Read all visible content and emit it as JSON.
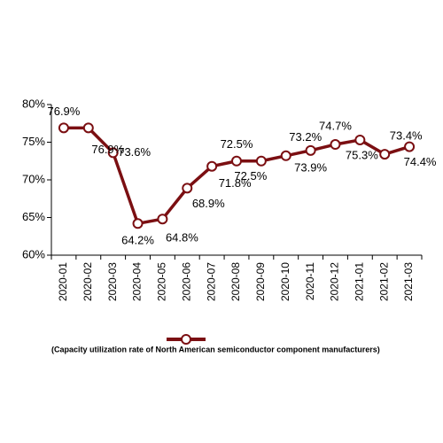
{
  "chart_data": {
    "type": "line",
    "categories": [
      "2020-01",
      "2020-02",
      "2020-03",
      "2020-04",
      "2020-05",
      "2020-06",
      "2020-07",
      "2020-08",
      "2020-09",
      "2020-10",
      "2020-11",
      "2020-12",
      "2021-01",
      "2021-02",
      "2021-03"
    ],
    "series": [
      {
        "name": "(Capacity utilization rate of North American semiconductor component manufacturers)",
        "values": [
          76.9,
          76.9,
          73.6,
          64.2,
          64.8,
          68.9,
          71.8,
          72.5,
          72.5,
          73.2,
          73.9,
          74.7,
          75.3,
          73.4,
          74.4
        ],
        "data_labels": [
          "76.9%",
          "76.9%",
          "73.6%",
          "64.2%",
          "64.8%",
          "68.9%",
          "71.8%",
          "72.5%",
          "72.5%",
          "73.2%",
          "73.9%",
          "74.7%",
          "75.3%",
          "73.4%",
          "74.4%"
        ],
        "color": "#7b0f12"
      }
    ],
    "ylim": [
      60,
      80
    ],
    "y_ticks": [
      60,
      65,
      70,
      75,
      80
    ],
    "y_tick_labels": [
      "60%",
      "65%",
      "70%",
      "75%",
      "80%"
    ],
    "grid": false,
    "legend_position": "bottom",
    "title": "",
    "xlabel": "",
    "ylabel": ""
  },
  "colors": {
    "series": "#7b0f12",
    "marker_fill": "#ffffff",
    "axis": "#000000"
  }
}
